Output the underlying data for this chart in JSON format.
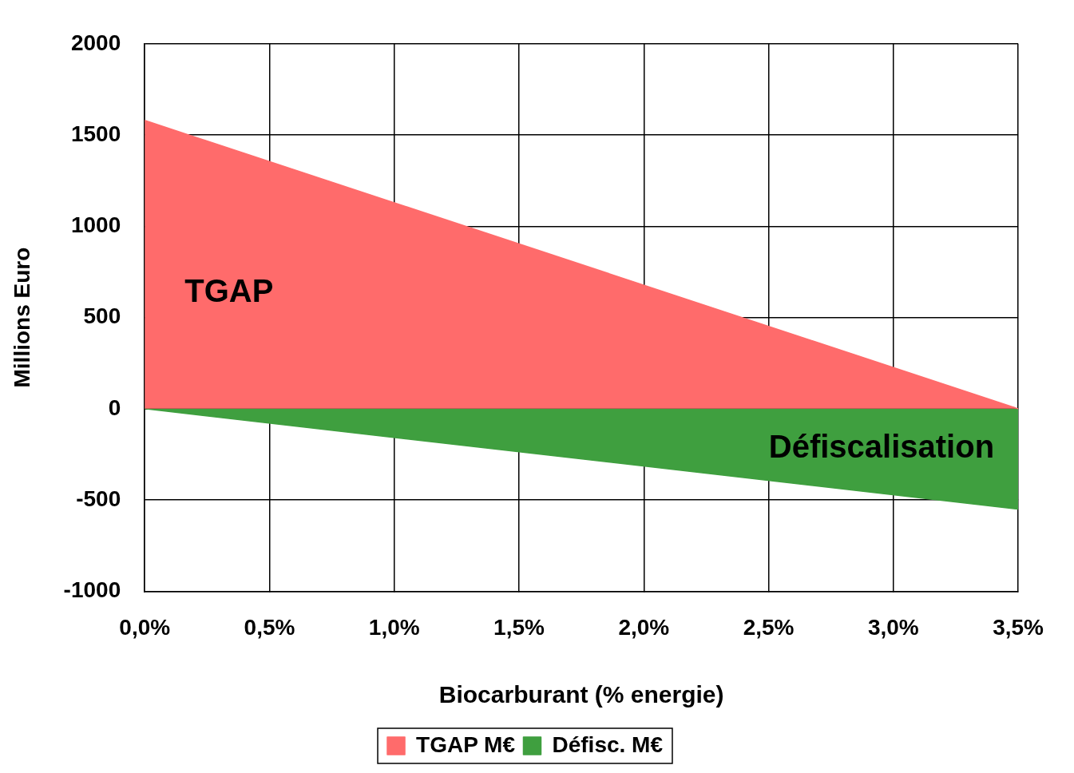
{
  "chart_data": {
    "type": "area",
    "xlabel": "Biocarburant (% energie)",
    "ylabel": "Millions Euro",
    "x": [
      0,
      3.5
    ],
    "series": [
      {
        "name": "TGAP M€",
        "color": "#ff6b6b",
        "values": [
          1580,
          0
        ]
      },
      {
        "name": "Défisc. M€",
        "color": "#3f9f3f",
        "values": [
          0,
          -550
        ]
      }
    ],
    "xlim": [
      0,
      3.5
    ],
    "xticks": [
      {
        "value": 0,
        "label": "0,0%"
      },
      {
        "value": 0.5,
        "label": "0,5%"
      },
      {
        "value": 1,
        "label": "1,0%"
      },
      {
        "value": 1.5,
        "label": "1,5%"
      },
      {
        "value": 2,
        "label": "2,0%"
      },
      {
        "value": 2.5,
        "label": "2,5%"
      },
      {
        "value": 3,
        "label": "3,0%"
      },
      {
        "value": 3.5,
        "label": "3,5%"
      }
    ],
    "ylim": [
      -1000,
      2000
    ],
    "yticks": [
      -1000,
      -500,
      0,
      500,
      1000,
      1500,
      2000
    ],
    "annotations": [
      "TGAP",
      "Défiscalisation"
    ],
    "grid": true,
    "legend": "bottom"
  }
}
